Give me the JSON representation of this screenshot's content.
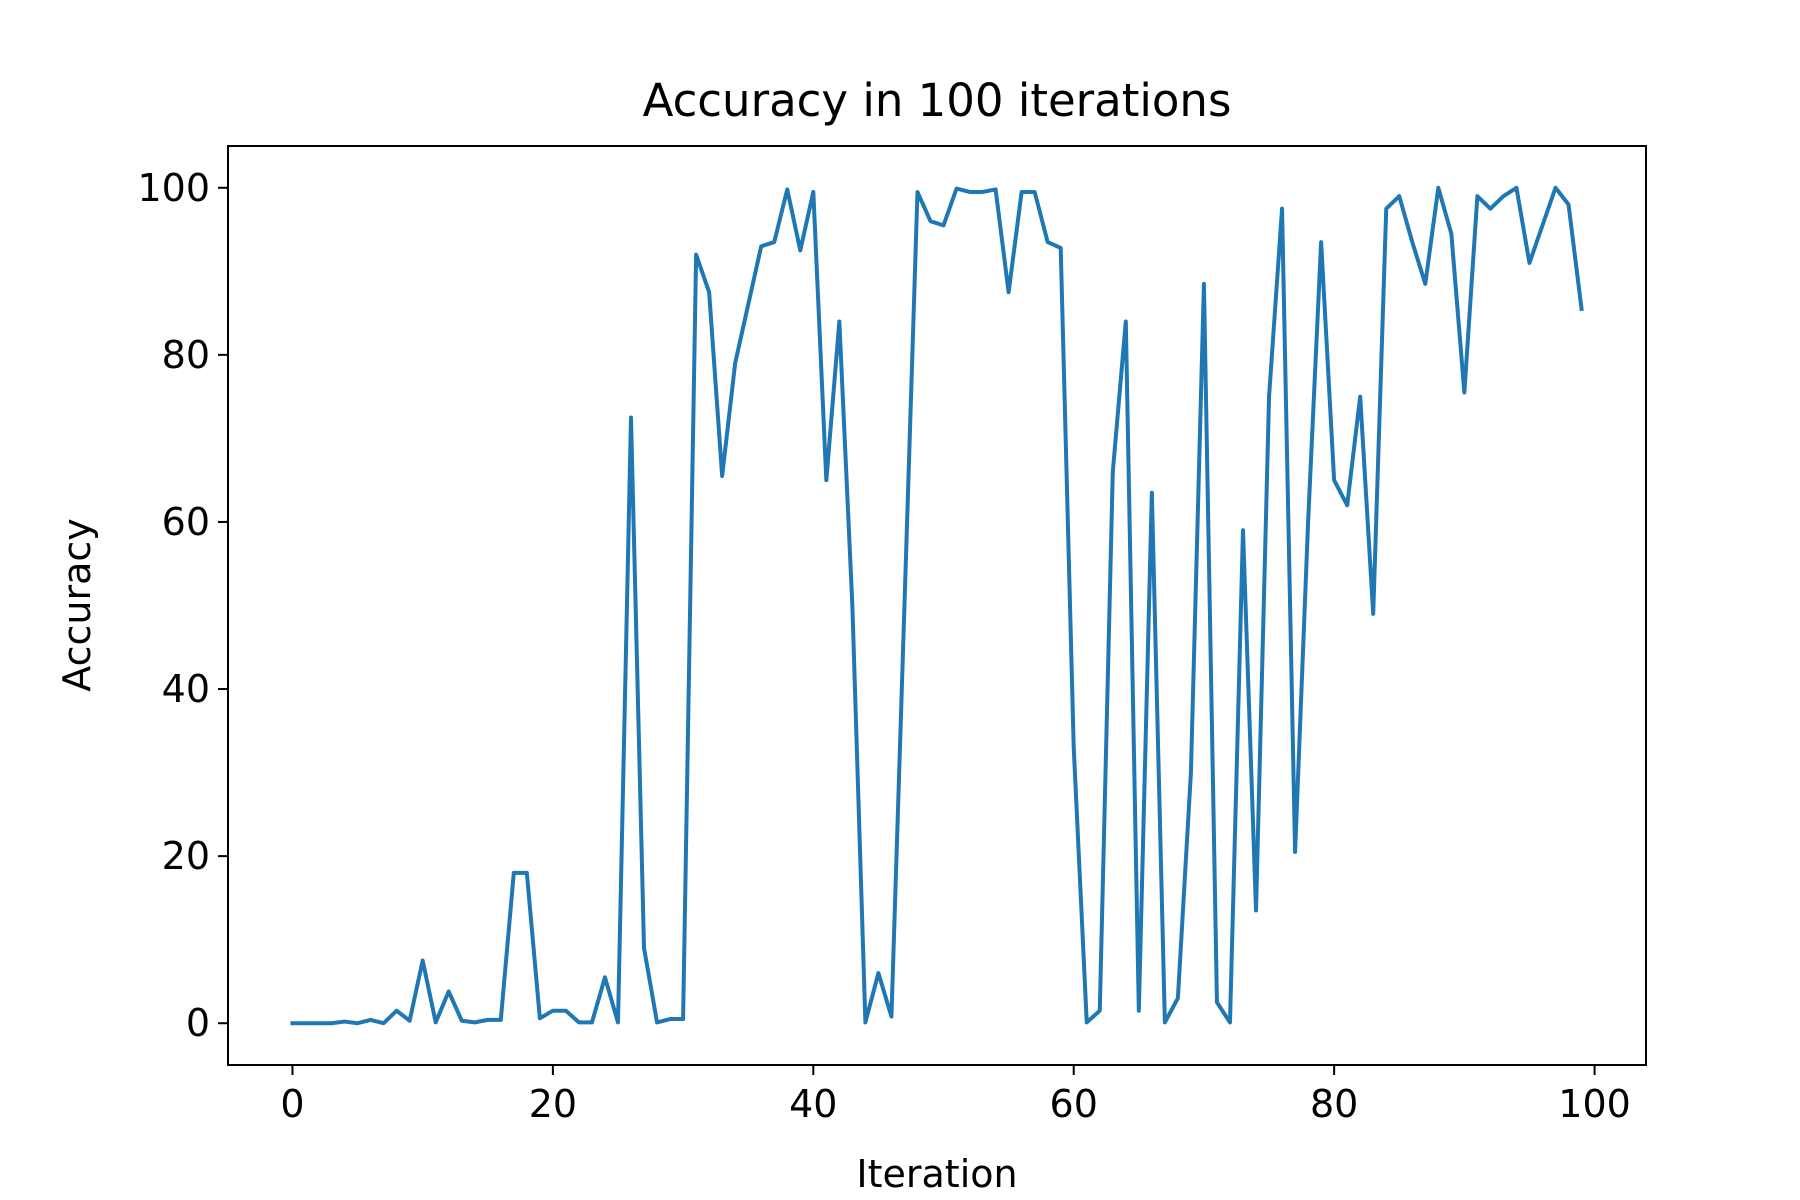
{
  "chart_data": {
    "type": "line",
    "title": "Accuracy in 100 iterations",
    "xlabel": "Iteration",
    "ylabel": "Accuracy",
    "xlim": [
      -4.95,
      103.95
    ],
    "ylim": [
      -5,
      105
    ],
    "xticks": [
      0,
      20,
      40,
      60,
      80,
      100
    ],
    "yticks": [
      0,
      20,
      40,
      60,
      80,
      100
    ],
    "grid": false,
    "legend": "none",
    "line_color": "#1f77b4",
    "series": [
      {
        "values": [
          0,
          0,
          0,
          0,
          0.2,
          0,
          0.4,
          0,
          1.5,
          0.3,
          7.5,
          0.1,
          3.8,
          0.3,
          0.1,
          0.4,
          0.4,
          18,
          18,
          0.6,
          1.5,
          1.5,
          0.1,
          0.1,
          5.5,
          0.1,
          72.5,
          9,
          0.1,
          0.5,
          0.5,
          92,
          87.5,
          65.5,
          79,
          86,
          93,
          93.5,
          99.8,
          92.5,
          99.5,
          65,
          84,
          50,
          0.1,
          6,
          0.8,
          50,
          99.5,
          96,
          95.5,
          99.9,
          99.5,
          99.5,
          99.8,
          87.5,
          99.5,
          99.5,
          93.5,
          92.8,
          33,
          0.1,
          1.5,
          66,
          84,
          1.5,
          63.5,
          0.1,
          3,
          30,
          88.5,
          2.5,
          0.1,
          59,
          13.5,
          75,
          97.5,
          20.5,
          60,
          93.5,
          65,
          62,
          75,
          49,
          97.5,
          99,
          93.5,
          88.5,
          100,
          94.5,
          75.5,
          99,
          97.5,
          99,
          100,
          91,
          95.5,
          100,
          98,
          85.5
        ]
      }
    ]
  }
}
